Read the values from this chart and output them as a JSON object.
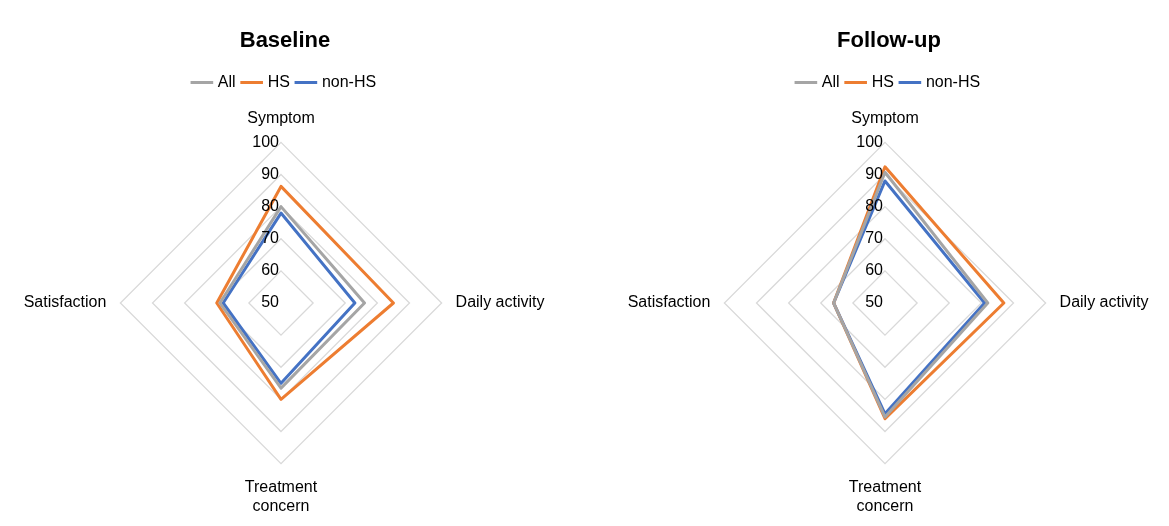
{
  "chart_data": [
    {
      "type": "radar",
      "title": "Baseline",
      "categories": [
        "Symptom",
        "Daily activity",
        "Treatment concern",
        "Satisfaction"
      ],
      "series": [
        {
          "name": "All",
          "color": "#a5a5a5",
          "values": [
            80,
            76,
            76.5,
            69
          ]
        },
        {
          "name": "HS",
          "color": "#ed7d31",
          "values": [
            86.3,
            85,
            80,
            70
          ]
        },
        {
          "name": "non-HS",
          "color": "#4472c4",
          "values": [
            78,
            73,
            75,
            68
          ]
        }
      ],
      "ylim": [
        50,
        100
      ],
      "yticks": [
        50,
        60,
        70,
        80,
        90,
        100
      ],
      "grid": true,
      "legend": "top",
      "marker": "none"
    },
    {
      "type": "radar",
      "title": "Follow-up",
      "categories": [
        "Symptom",
        "Daily activity",
        "Treatment concern",
        "Satisfaction"
      ],
      "series": [
        {
          "name": "All",
          "color": "#a5a5a5",
          "values": [
            90.7,
            82,
            85.5,
            66
          ]
        },
        {
          "name": "HS",
          "color": "#ed7d31",
          "values": [
            92.4,
            87,
            86,
            66
          ]
        },
        {
          "name": "non-HS",
          "color": "#4472c4",
          "values": [
            88,
            81,
            84.5,
            66
          ]
        }
      ],
      "ylim": [
        50,
        100
      ],
      "yticks": [
        50,
        60,
        70,
        80,
        90,
        100
      ],
      "grid": true,
      "legend": "top",
      "marker": "none"
    }
  ]
}
